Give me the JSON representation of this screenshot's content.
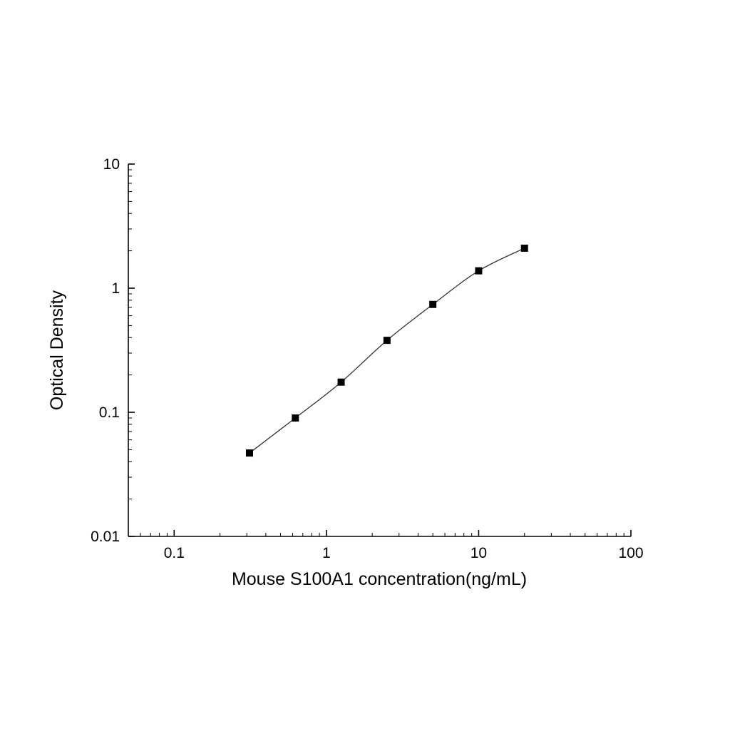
{
  "page": {
    "background": "#ffffff"
  },
  "chart_data": {
    "type": "line",
    "marker": "square",
    "marker_color": "#000000",
    "line_color": "#333333",
    "axis_color": "#000000",
    "title": "",
    "xlabel": "Mouse S100A1 concentration(ng/mL)",
    "ylabel": "Optical Density",
    "xscale": "log",
    "yscale": "log",
    "grid": false,
    "legend": null,
    "xlim": [
      0.05,
      100
    ],
    "ylim": [
      0.01,
      10
    ],
    "xticks": [
      0.1,
      1,
      10,
      100
    ],
    "yticks": [
      0.01,
      0.1,
      1,
      10
    ],
    "xtick_labels": [
      "0.1",
      "1",
      "10",
      "100"
    ],
    "ytick_labels": [
      "0.01",
      "0.1",
      "1",
      "10"
    ],
    "x": [
      0.3125,
      0.625,
      1.25,
      2.5,
      5,
      10,
      20
    ],
    "y": [
      0.047,
      0.09,
      0.175,
      0.38,
      0.74,
      1.38,
      2.1
    ]
  }
}
